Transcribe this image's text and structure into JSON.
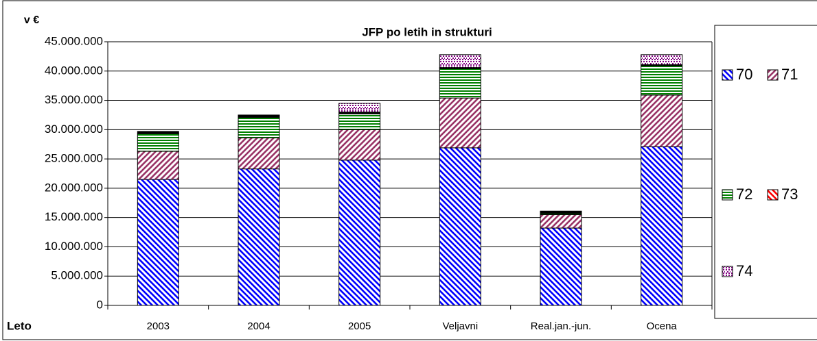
{
  "chart_data": {
    "type": "stacked-bar",
    "title": "JFP po letih in strukturi",
    "y_label": "v €",
    "x_label": "Leto",
    "categories": [
      "2003",
      "2004",
      "2005",
      "Veljavni",
      "Real.jan.-jun.",
      "Ocena"
    ],
    "series": [
      {
        "name": "70",
        "color": "#0000ff",
        "pattern": "diagonal-down",
        "values": [
          21500000,
          23300000,
          24800000,
          26900000,
          13200000,
          27100000
        ]
      },
      {
        "name": "71",
        "color": "#993366",
        "pattern": "diagonal-up",
        "values": [
          4800000,
          5300000,
          5200000,
          8500000,
          2300000,
          8800000
        ]
      },
      {
        "name": "72",
        "color": "#008000",
        "pattern": "horizontal",
        "values": [
          3000000,
          3500000,
          2700000,
          5000000,
          200000,
          5000000
        ]
      },
      {
        "name": "73",
        "color": "#ff0000",
        "pattern": "diagonal-down",
        "values": [
          400000,
          400000,
          300000,
          200000,
          400000,
          200000
        ]
      },
      {
        "name": "74",
        "color": "#800080",
        "pattern": "dots",
        "values": [
          0,
          0,
          1500000,
          2200000,
          0,
          1700000
        ]
      }
    ],
    "ylim": [
      0,
      45000000
    ],
    "yticks": [
      0,
      {
        "value": 5000000,
        "label": "5.000.000"
      },
      {
        "value": 10000000,
        "label": "10.000.000"
      },
      {
        "value": 15000000,
        "label": "15.000.000"
      },
      {
        "value": 20000000,
        "label": "20.000.000"
      },
      {
        "value": 25000000,
        "label": "25.000.000"
      },
      {
        "value": 30000000,
        "label": "30.000.000"
      },
      {
        "value": 35000000,
        "label": "35.000.000"
      },
      {
        "value": 40000000,
        "label": "40.000.000"
      },
      {
        "value": 45000000,
        "label": "45.000.000"
      }
    ],
    "grid": true,
    "legend": "right"
  }
}
